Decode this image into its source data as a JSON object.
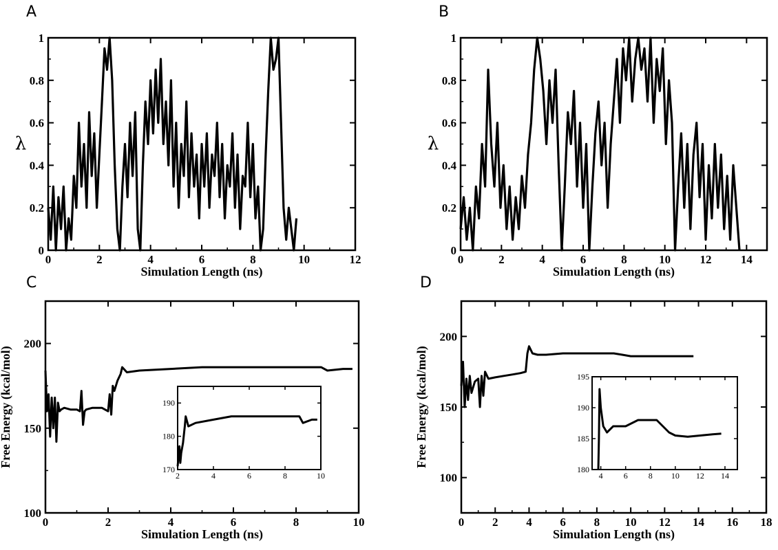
{
  "chart_data": [
    {
      "panel": "A",
      "type": "line",
      "xlabel": "Simulation Length (ns)",
      "ylabel": "λ",
      "xlim": [
        0,
        12
      ],
      "ylim": [
        0,
        1
      ],
      "xticks": [
        0,
        2,
        4,
        6,
        8,
        10,
        12
      ],
      "yticks": [
        0,
        0.2,
        0.4,
        0.6,
        0.8,
        1
      ],
      "grid": false,
      "series": [
        {
          "x": [
            0.0,
            0.1,
            0.2,
            0.3,
            0.4,
            0.5,
            0.6,
            0.7,
            0.8,
            0.9,
            1.0,
            1.1,
            1.2,
            1.3,
            1.4,
            1.5,
            1.6,
            1.7,
            1.8,
            1.9,
            2.0,
            2.1,
            2.2,
            2.3,
            2.4,
            2.5,
            2.6,
            2.7,
            2.8,
            2.9,
            3.0,
            3.1,
            3.2,
            3.3,
            3.4,
            3.5,
            3.6,
            3.7,
            3.8,
            3.9,
            4.0,
            4.1,
            4.2,
            4.3,
            4.4,
            4.5,
            4.6,
            4.7,
            4.8,
            4.9,
            5.0,
            5.1,
            5.2,
            5.3,
            5.4,
            5.5,
            5.6,
            5.7,
            5.8,
            5.9,
            6.0,
            6.1,
            6.2,
            6.3,
            6.4,
            6.5,
            6.6,
            6.7,
            6.8,
            6.9,
            7.0,
            7.1,
            7.2,
            7.3,
            7.4,
            7.5,
            7.6,
            7.7,
            7.8,
            7.9,
            8.0,
            8.1,
            8.2,
            8.3,
            8.4,
            8.5,
            8.6,
            8.7,
            8.8,
            8.9,
            9.0,
            9.1,
            9.2,
            9.3,
            9.4,
            9.5,
            9.6,
            9.7
          ],
          "y": [
            0.2,
            0.05,
            0.3,
            0.0,
            0.25,
            0.1,
            0.3,
            0.0,
            0.15,
            0.05,
            0.35,
            0.2,
            0.6,
            0.3,
            0.5,
            0.2,
            0.65,
            0.35,
            0.55,
            0.2,
            0.45,
            0.7,
            0.95,
            0.85,
            1.0,
            0.8,
            0.4,
            0.1,
            0.0,
            0.3,
            0.5,
            0.25,
            0.6,
            0.35,
            0.65,
            0.1,
            0.0,
            0.4,
            0.7,
            0.5,
            0.8,
            0.55,
            0.85,
            0.6,
            0.9,
            0.5,
            0.7,
            0.4,
            0.8,
            0.3,
            0.6,
            0.2,
            0.5,
            0.35,
            0.7,
            0.25,
            0.55,
            0.3,
            0.45,
            0.15,
            0.5,
            0.3,
            0.55,
            0.2,
            0.45,
            0.35,
            0.6,
            0.25,
            0.5,
            0.15,
            0.4,
            0.3,
            0.55,
            0.2,
            0.45,
            0.1,
            0.35,
            0.3,
            0.6,
            0.25,
            0.5,
            0.15,
            0.3,
            0.0,
            0.1,
            0.45,
            0.75,
            1.0,
            0.85,
            0.9,
            1.0,
            0.6,
            0.2,
            0.05,
            0.2,
            0.1,
            0.0,
            0.15
          ]
        }
      ]
    },
    {
      "panel": "B",
      "type": "line",
      "xlabel": "Simulation Length (ns)",
      "ylabel": "λ",
      "xlim": [
        0,
        15
      ],
      "ylim": [
        0,
        1
      ],
      "xticks": [
        0,
        2,
        4,
        6,
        8,
        10,
        12,
        14
      ],
      "yticks": [
        0,
        0.2,
        0.4,
        0.6,
        0.8,
        1
      ],
      "grid": false,
      "series": [
        {
          "x": [
            0.0,
            0.15,
            0.3,
            0.45,
            0.6,
            0.75,
            0.9,
            1.05,
            1.2,
            1.35,
            1.5,
            1.65,
            1.8,
            1.95,
            2.1,
            2.25,
            2.4,
            2.55,
            2.7,
            2.85,
            3.0,
            3.15,
            3.3,
            3.45,
            3.6,
            3.75,
            3.9,
            4.05,
            4.2,
            4.35,
            4.5,
            4.65,
            4.8,
            4.95,
            5.1,
            5.25,
            5.4,
            5.55,
            5.7,
            5.85,
            6.0,
            6.15,
            6.3,
            6.45,
            6.6,
            6.75,
            6.9,
            7.05,
            7.2,
            7.35,
            7.5,
            7.65,
            7.8,
            7.95,
            8.1,
            8.25,
            8.4,
            8.55,
            8.7,
            8.85,
            9.0,
            9.15,
            9.3,
            9.45,
            9.6,
            9.75,
            9.9,
            10.05,
            10.2,
            10.35,
            10.5,
            10.65,
            10.8,
            10.95,
            11.1,
            11.25,
            11.4,
            11.55,
            11.7,
            11.85,
            12.0,
            12.15,
            12.3,
            12.45,
            12.6,
            12.75,
            12.9,
            13.05,
            13.2,
            13.35,
            13.5,
            13.65
          ],
          "y": [
            0.1,
            0.25,
            0.05,
            0.2,
            0.0,
            0.3,
            0.15,
            0.5,
            0.3,
            0.85,
            0.5,
            0.3,
            0.6,
            0.2,
            0.4,
            0.1,
            0.3,
            0.05,
            0.25,
            0.1,
            0.35,
            0.2,
            0.45,
            0.6,
            0.85,
            1.0,
            0.9,
            0.75,
            0.5,
            0.8,
            0.6,
            0.85,
            0.4,
            0.0,
            0.3,
            0.65,
            0.5,
            0.75,
            0.3,
            0.6,
            0.2,
            0.5,
            0.0,
            0.3,
            0.55,
            0.7,
            0.4,
            0.6,
            0.2,
            0.5,
            0.7,
            0.9,
            0.6,
            0.95,
            0.8,
            1.0,
            0.7,
            0.9,
            1.0,
            0.85,
            0.95,
            0.7,
            1.0,
            0.6,
            0.9,
            0.75,
            0.95,
            0.5,
            0.8,
            0.6,
            0.0,
            0.3,
            0.55,
            0.2,
            0.5,
            0.1,
            0.45,
            0.6,
            0.25,
            0.5,
            0.05,
            0.4,
            0.15,
            0.5,
            0.2,
            0.45,
            0.1,
            0.35,
            0.05,
            0.4,
            0.2,
            0.0
          ]
        }
      ]
    },
    {
      "panel": "C",
      "type": "line",
      "xlabel": "Simulation Length (ns)",
      "ylabel": "Free Energy (kcal/mol)",
      "xlim": [
        0,
        10
      ],
      "ylim": [
        100,
        225
      ],
      "xticks": [
        0,
        2,
        4,
        6,
        8,
        10
      ],
      "yticks": [
        100,
        150,
        200
      ],
      "grid": false,
      "series": [
        {
          "x": [
            0.0,
            0.05,
            0.1,
            0.15,
            0.2,
            0.25,
            0.3,
            0.35,
            0.4,
            0.45,
            0.5,
            0.6,
            0.8,
            1.0,
            1.1,
            1.15,
            1.2,
            1.25,
            1.3,
            1.5,
            1.8,
            2.0,
            2.05,
            2.1,
            2.15,
            2.2,
            2.3,
            2.4,
            2.45,
            2.5,
            2.6,
            3.0,
            4.0,
            5.0,
            6.0,
            7.0,
            8.0,
            8.5,
            8.8,
            9.0,
            9.5,
            9.8
          ],
          "y": [
            184,
            160,
            170,
            145,
            168,
            150,
            168,
            142,
            165,
            160,
            161,
            162,
            161,
            161,
            160,
            172,
            152,
            160,
            161,
            162,
            162,
            160,
            170,
            158,
            175,
            172,
            178,
            182,
            186,
            185,
            183,
            184,
            185,
            186,
            186,
            186,
            186,
            186,
            186,
            184,
            185,
            185
          ]
        }
      ],
      "inset": {
        "xlim": [
          2,
          10
        ],
        "ylim": [
          170,
          195
        ],
        "xticks": [
          2,
          4,
          6,
          8,
          10
        ],
        "yticks": [
          170,
          180,
          190
        ],
        "series": [
          {
            "x": [
              2.0,
              2.1,
              2.15,
              2.2,
              2.3,
              2.4,
              2.45,
              2.5,
              2.6,
              3.0,
              4.0,
              5.0,
              6.0,
              7.0,
              8.0,
              8.5,
              8.8,
              9.0,
              9.5,
              9.8
            ],
            "y": [
              171,
              177,
              172,
              175,
              178,
              183,
              186,
              185,
              183,
              184,
              185,
              186,
              186,
              186,
              186,
              186,
              186,
              184,
              185,
              185
            ]
          }
        ]
      }
    },
    {
      "panel": "D",
      "type": "line",
      "xlabel": "Simulation Length (ns)",
      "ylabel": "Free Energy (kcal/mol)",
      "xlim": [
        0,
        18
      ],
      "ylim": [
        75,
        225
      ],
      "xticks": [
        0,
        2,
        4,
        6,
        8,
        10,
        12,
        14,
        16,
        18
      ],
      "yticks": [
        100,
        150,
        200
      ],
      "grid": false,
      "series": [
        {
          "x": [
            0.0,
            0.1,
            0.2,
            0.3,
            0.4,
            0.5,
            0.6,
            0.8,
            1.0,
            1.1,
            1.2,
            1.3,
            1.4,
            1.6,
            2.0,
            2.5,
            3.0,
            3.5,
            3.8,
            3.9,
            4.0,
            4.2,
            4.5,
            5.0,
            6.0,
            7.0,
            8.0,
            9.0,
            9.5,
            10.0,
            11.0,
            12.0,
            13.0,
            13.7
          ],
          "y": [
            165,
            182,
            150,
            170,
            155,
            172,
            160,
            168,
            170,
            150,
            172,
            158,
            175,
            170,
            171,
            172,
            173,
            174,
            175,
            188,
            193,
            188,
            187,
            187,
            188,
            188,
            188,
            188,
            187,
            186,
            186,
            186,
            186,
            186
          ]
        }
      ],
      "inset": {
        "xlim": [
          3.3,
          15
        ],
        "ylim": [
          180,
          195
        ],
        "xticks": [
          4,
          6,
          8,
          10,
          12,
          14
        ],
        "yticks": [
          180,
          185,
          190,
          195
        ],
        "series": [
          {
            "x": [
              3.8,
              3.85,
              3.9,
              4.0,
              4.2,
              4.5,
              5.0,
              6.0,
              7.0,
              8.0,
              8.5,
              9.0,
              9.5,
              10.0,
              11.0,
              12.0,
              13.0,
              13.7
            ],
            "y": [
              180,
              185,
              193,
              190,
              187,
              186,
              187,
              187,
              188,
              188,
              188,
              187,
              186,
              185.5,
              185.3,
              185.5,
              185.7,
              185.8
            ]
          }
        ]
      }
    }
  ]
}
